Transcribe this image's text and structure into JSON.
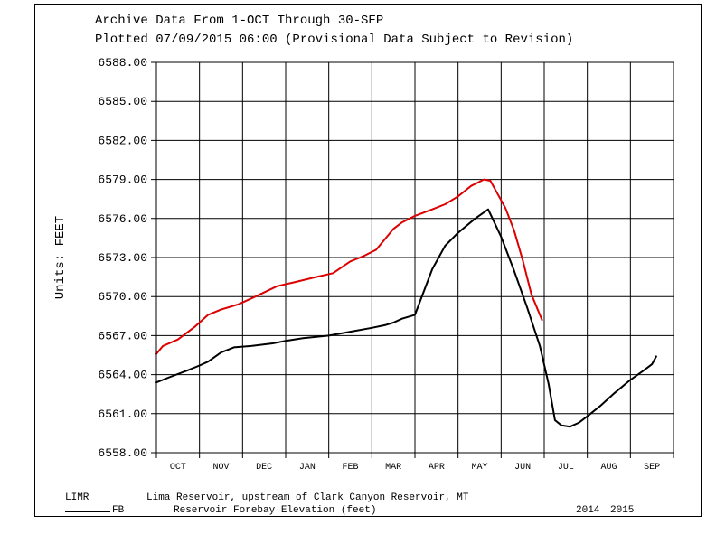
{
  "chart_data": {
    "type": "line",
    "title_line1": "Archive Data From  1-OCT Through 30-SEP",
    "title_line2": "Plotted 07/09/2015  06:00 (Provisional Data Subject to Revision)",
    "ylabel": "Units:  FEET",
    "ylim": [
      6558.0,
      6588.0
    ],
    "yticks": [
      "6588.00",
      "6585.00",
      "6582.00",
      "6579.00",
      "6576.00",
      "6573.00",
      "6570.00",
      "6567.00",
      "6564.00",
      "6561.00",
      "6558.00"
    ],
    "categories": [
      "OCT",
      "NOV",
      "DEC",
      "JAN",
      "FEB",
      "MAR",
      "APR",
      "MAY",
      "JUN",
      "JUL",
      "AUG",
      "SEP"
    ],
    "series": [
      {
        "name": "2014",
        "color": "#000000",
        "x": [
          0,
          0.3,
          0.7,
          1.0,
          1.2,
          1.5,
          1.8,
          2.2,
          2.7,
          3.0,
          3.4,
          4.0,
          4.5,
          5.0,
          5.3,
          5.5,
          5.7,
          6.0,
          6.4,
          6.7,
          7.0,
          7.4,
          7.7,
          8.0,
          8.3,
          8.6,
          8.9,
          9.1,
          9.25,
          9.4,
          9.6,
          9.8,
          10.0,
          10.3,
          10.6,
          11.0,
          11.3,
          11.5,
          11.6
        ],
        "values": [
          6563.4,
          6563.8,
          6564.3,
          6564.7,
          6565.0,
          6565.7,
          6566.1,
          6566.2,
          6566.4,
          6566.6,
          6566.8,
          6567.0,
          6567.3,
          6567.6,
          6567.8,
          6568.0,
          6568.3,
          6568.6,
          6572.1,
          6573.9,
          6574.9,
          6576.0,
          6576.7,
          6574.6,
          6572.0,
          6569.2,
          6566.2,
          6563.3,
          6560.5,
          6560.1,
          6560.0,
          6560.3,
          6560.8,
          6561.6,
          6562.5,
          6563.6,
          6564.3,
          6564.8,
          6565.4
        ]
      },
      {
        "name": "2015",
        "color": "#dd0000",
        "x": [
          0,
          0.15,
          0.5,
          0.9,
          1.2,
          1.5,
          1.9,
          2.3,
          2.8,
          3.2,
          3.7,
          4.1,
          4.5,
          4.8,
          5.1,
          5.35,
          5.5,
          5.7,
          6.0,
          6.4,
          6.7,
          7.0,
          7.3,
          7.6,
          7.75,
          7.85,
          8.1,
          8.3,
          8.5,
          8.7,
          8.85,
          8.95
        ],
        "values": [
          6565.6,
          6566.2,
          6566.7,
          6567.7,
          6568.6,
          6569.0,
          6569.4,
          6570.0,
          6570.8,
          6571.1,
          6571.5,
          6571.8,
          6572.7,
          6573.1,
          6573.6,
          6574.6,
          6575.2,
          6575.7,
          6576.2,
          6576.7,
          6577.1,
          6577.7,
          6578.5,
          6579.0,
          6578.9,
          6578.3,
          6576.8,
          6575.1,
          6572.8,
          6570.2,
          6569.0,
          6568.2
        ]
      }
    ],
    "legend": {
      "site": "LIMR",
      "description": "Lima Reservoir, upstream of Clark Canyon Reservoir, MT",
      "param_code": "FB",
      "param_desc": "Reservoir Forebay Elevation (feet)",
      "year_2014": "2014",
      "year_2015": "2015",
      "color_2014": "#000000",
      "color_2015": "#dd0000"
    }
  }
}
